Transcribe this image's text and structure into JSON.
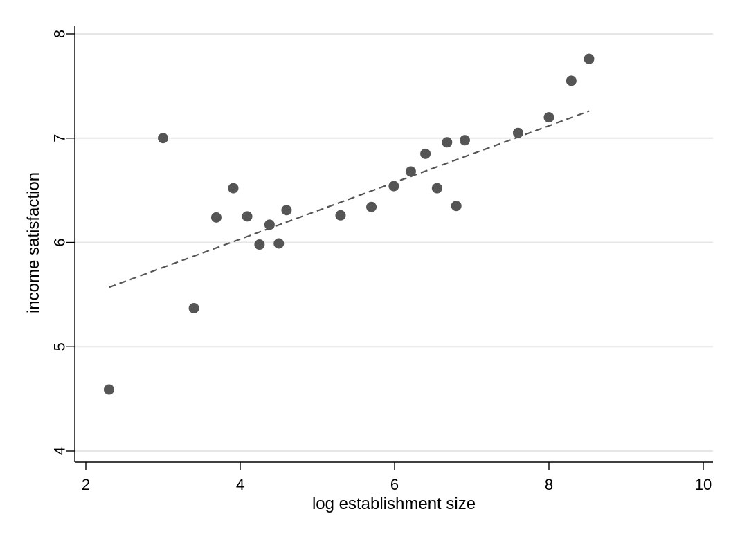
{
  "chart_data": {
    "type": "scatter",
    "title": "",
    "xlabel": "log establishment size",
    "ylabel": "income satisfaction",
    "xlim": [
      2,
      10
    ],
    "ylim": [
      4,
      8
    ],
    "xticks": [
      2,
      4,
      6,
      8,
      10
    ],
    "yticks": [
      4,
      5,
      6,
      7,
      8
    ],
    "grid": "horizontal",
    "legend": "none",
    "points": [
      {
        "x": 2.3,
        "y": 4.59
      },
      {
        "x": 3.0,
        "y": 7.0
      },
      {
        "x": 3.4,
        "y": 5.37
      },
      {
        "x": 3.69,
        "y": 6.24
      },
      {
        "x": 3.91,
        "y": 6.52
      },
      {
        "x": 4.09,
        "y": 6.25
      },
      {
        "x": 4.25,
        "y": 5.98
      },
      {
        "x": 4.38,
        "y": 6.17
      },
      {
        "x": 4.5,
        "y": 5.99
      },
      {
        "x": 4.6,
        "y": 6.31
      },
      {
        "x": 5.3,
        "y": 6.26
      },
      {
        "x": 5.7,
        "y": 6.34
      },
      {
        "x": 5.99,
        "y": 6.54
      },
      {
        "x": 6.21,
        "y": 6.68
      },
      {
        "x": 6.4,
        "y": 6.85
      },
      {
        "x": 6.55,
        "y": 6.52
      },
      {
        "x": 6.68,
        "y": 6.96
      },
      {
        "x": 6.8,
        "y": 6.35
      },
      {
        "x": 6.91,
        "y": 6.98
      },
      {
        "x": 7.6,
        "y": 7.05
      },
      {
        "x": 8.0,
        "y": 7.2
      },
      {
        "x": 8.29,
        "y": 7.55
      },
      {
        "x": 8.52,
        "y": 7.76
      }
    ],
    "fit_line": {
      "style": "dashed",
      "x": [
        2.3,
        8.52
      ],
      "y": [
        5.57,
        7.26
      ]
    },
    "colors": {
      "points": "#555555",
      "fit_line": "#555555",
      "grid": "#e6e6e6"
    }
  }
}
